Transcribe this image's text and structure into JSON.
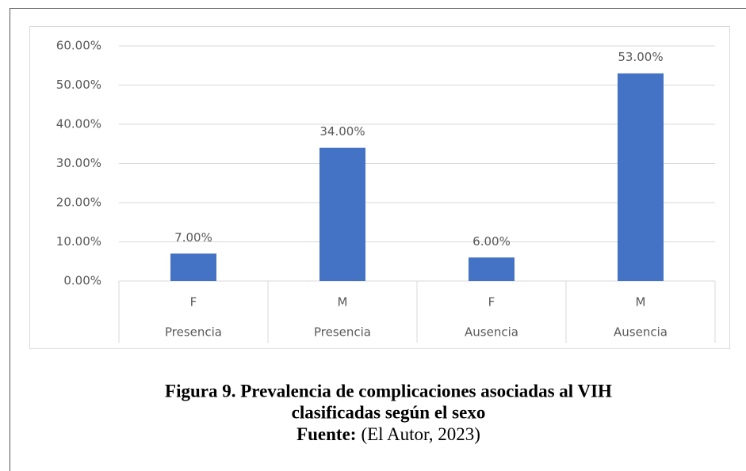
{
  "chart_data": {
    "type": "bar",
    "categories": [
      "F",
      "M",
      "F",
      "M"
    ],
    "groups": [
      "Presencia",
      "Presencia",
      "Ausencia",
      "Ausencia"
    ],
    "values": [
      7,
      34,
      6,
      53
    ],
    "value_labels": [
      "7.00%",
      "34.00%",
      "6.00%",
      "53.00%"
    ],
    "color": "#4472c4",
    "ylim": [
      0,
      60
    ],
    "yticks": [
      {
        "value": 0,
        "label": "0.00%"
      },
      {
        "value": 10,
        "label": "10.00%"
      },
      {
        "value": 20,
        "label": "20.00%"
      },
      {
        "value": 30,
        "label": "30.00%"
      },
      {
        "value": 40,
        "label": "40.00%"
      },
      {
        "value": 50,
        "label": "50.00%"
      },
      {
        "value": 60,
        "label": "60.00%"
      }
    ],
    "grid": true
  },
  "caption": {
    "title_line1": "Figura 9. Prevalencia de complicaciones asociadas al VIH",
    "title_line2": "clasificadas según el sexo",
    "source_label": "Fuente:",
    "source_text": "(El Autor, 2023)"
  }
}
